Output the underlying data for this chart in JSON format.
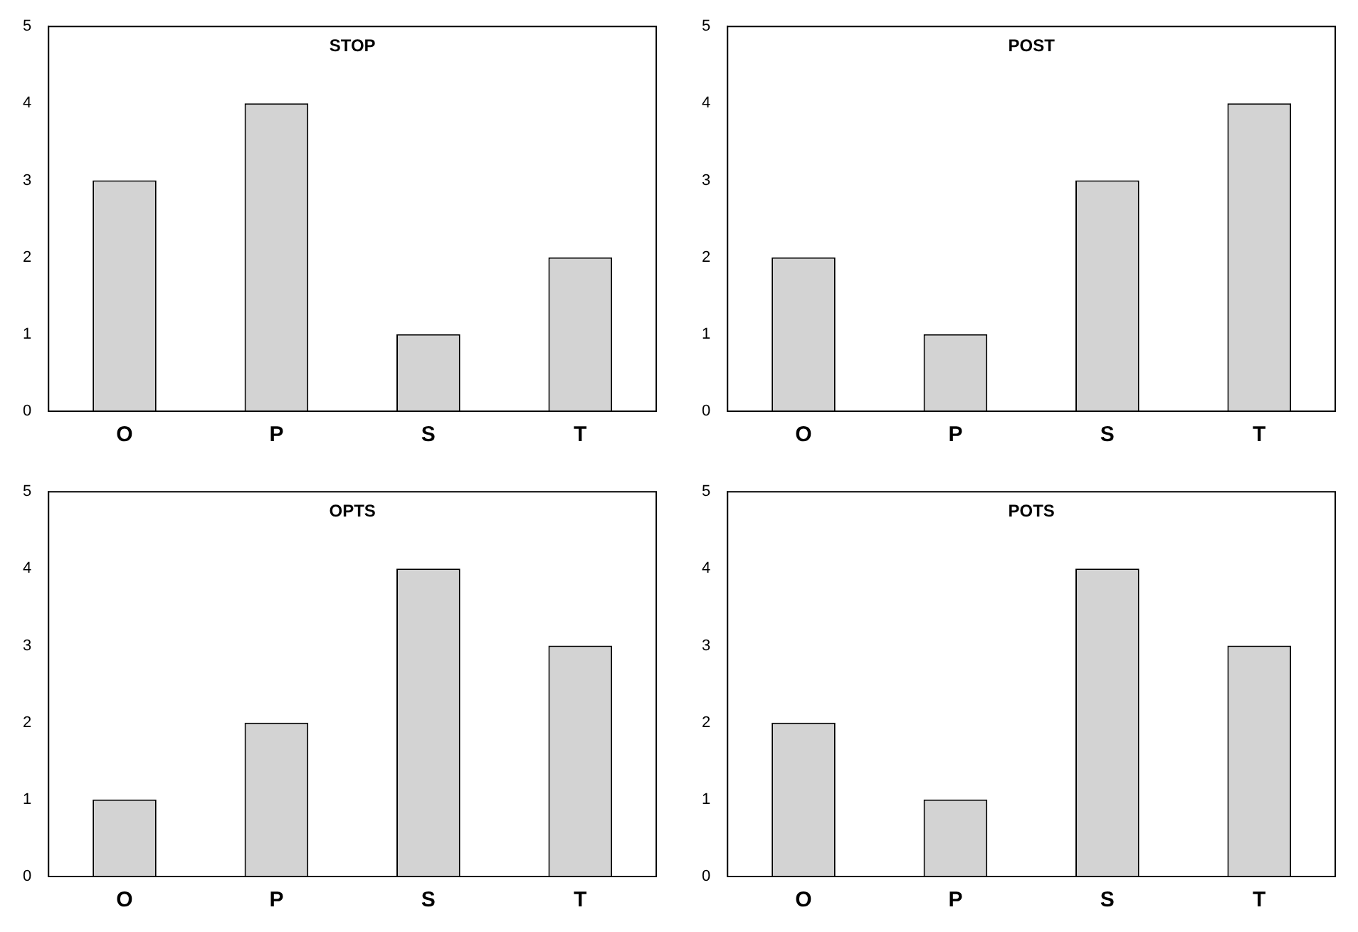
{
  "chart_data": [
    {
      "type": "bar",
      "title": "STOP",
      "categories": [
        "O",
        "P",
        "S",
        "T"
      ],
      "values": [
        3,
        4,
        1,
        2
      ],
      "color": "#d3d3d3",
      "ylim": [
        0,
        5
      ],
      "yticks": [
        0,
        1,
        2,
        3,
        4,
        5
      ],
      "grid": false,
      "legend": false
    },
    {
      "type": "bar",
      "title": "POST",
      "categories": [
        "O",
        "P",
        "S",
        "T"
      ],
      "values": [
        2,
        1,
        3,
        4
      ],
      "color": "#d3d3d3",
      "ylim": [
        0,
        5
      ],
      "yticks": [
        0,
        1,
        2,
        3,
        4,
        5
      ],
      "grid": false,
      "legend": false
    },
    {
      "type": "bar",
      "title": "OPTS",
      "categories": [
        "O",
        "P",
        "S",
        "T"
      ],
      "values": [
        1,
        2,
        4,
        3
      ],
      "color": "#d3d3d3",
      "ylim": [
        0,
        5
      ],
      "yticks": [
        0,
        1,
        2,
        3,
        4,
        5
      ],
      "grid": false,
      "legend": false
    },
    {
      "type": "bar",
      "title": "POTS",
      "categories": [
        "O",
        "P",
        "S",
        "T"
      ],
      "values": [
        2,
        1,
        4,
        3
      ],
      "color": "#d3d3d3",
      "ylim": [
        0,
        5
      ],
      "yticks": [
        0,
        1,
        2,
        3,
        4,
        5
      ],
      "grid": false,
      "legend": false
    }
  ]
}
